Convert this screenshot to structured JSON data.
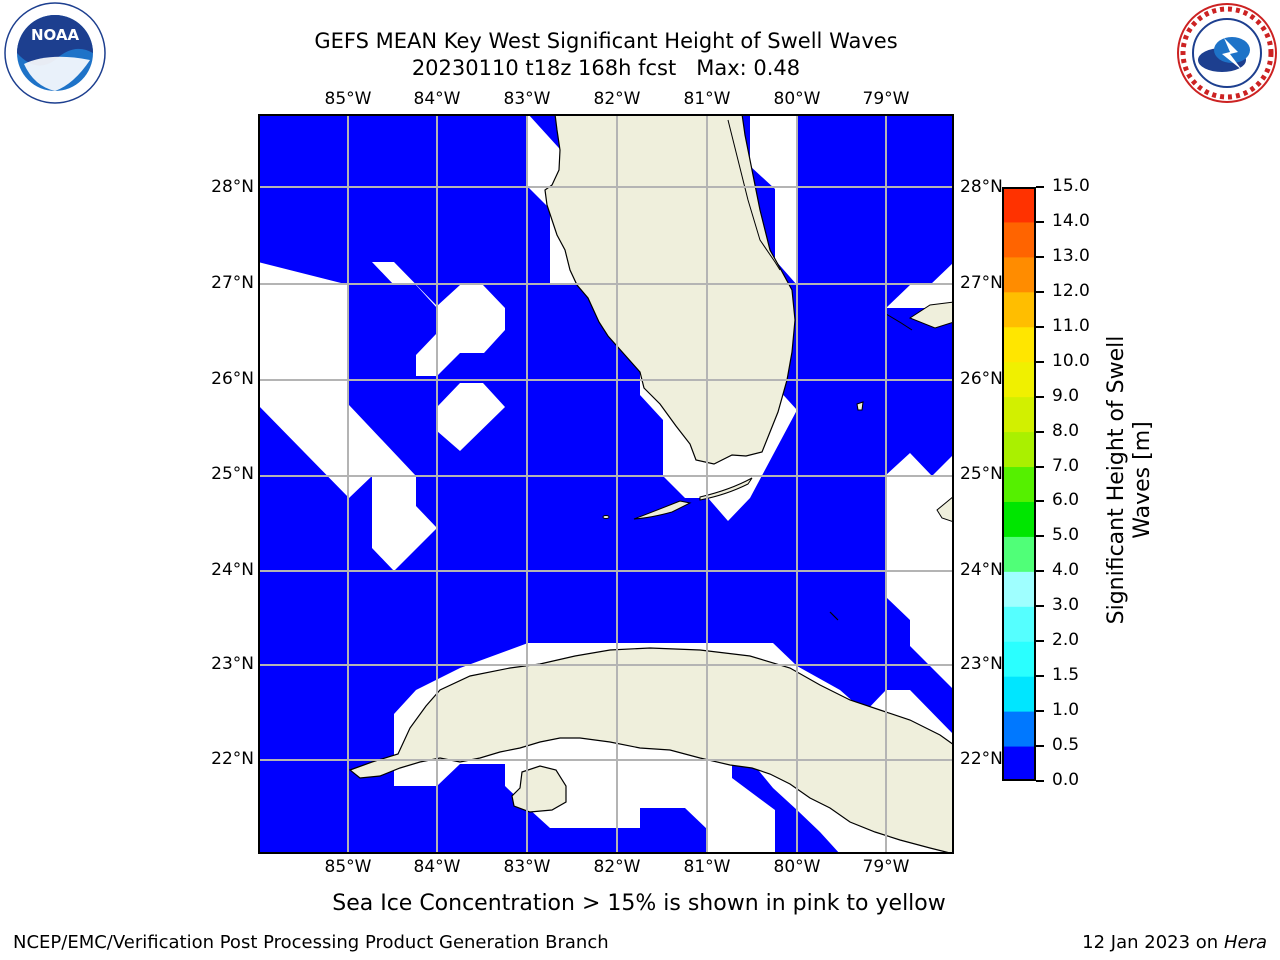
{
  "header": {
    "title_line1": "GEFS MEAN Key West Significant Height of Swell Waves",
    "title_line2": "20230110 t18z 168h fcst   Max: 0.48"
  },
  "logos": {
    "left": {
      "text": "NOAA",
      "ring_text": "NATIONAL OCEANIC AND ATMOSPHERIC ADMINISTRATION · U.S. DEPARTMENT OF COMMERCE"
    },
    "right": {
      "ring_text": "NATIONAL WEATHER SERVICE"
    }
  },
  "map": {
    "lon_labels": [
      "85°W",
      "84°W",
      "83°W",
      "82°W",
      "81°W",
      "80°W",
      "79°W"
    ],
    "lat_labels": [
      "28°N",
      "27°N",
      "26°N",
      "25°N",
      "24°N",
      "23°N",
      "22°N"
    ],
    "colors": {
      "swell": "#0000ff",
      "land": "#efefdc",
      "nodata": "#ffffff",
      "grid": "#b4b4b4"
    }
  },
  "colorbar": {
    "label_line1": "Significant Height of Swell",
    "label_line2": "Waves [m]",
    "ticks": [
      "0.0",
      "0.5",
      "1.0",
      "1.5",
      "2.0",
      "3.0",
      "4.0",
      "5.0",
      "6.0",
      "7.0",
      "8.0",
      "9.0",
      "10.0",
      "11.0",
      "12.0",
      "13.0",
      "14.0",
      "15.0"
    ],
    "colors": [
      "#0000ff",
      "#0078ff",
      "#00e6ff",
      "#2affff",
      "#55ffff",
      "#9fffff",
      "#50ff78",
      "#00e600",
      "#55f000",
      "#aaf000",
      "#d2f000",
      "#f0f000",
      "#ffe600",
      "#ffbe00",
      "#ff8c00",
      "#ff6400",
      "#ff3200",
      "#ff0000"
    ]
  },
  "footer": {
    "note": "Sea Ice Concentration > 15% is shown in pink to yellow",
    "left": "NCEP/EMC/Verification Post Processing Product Generation Branch",
    "right_date": "12 Jan 2023 on ",
    "right_host": "Hera"
  }
}
